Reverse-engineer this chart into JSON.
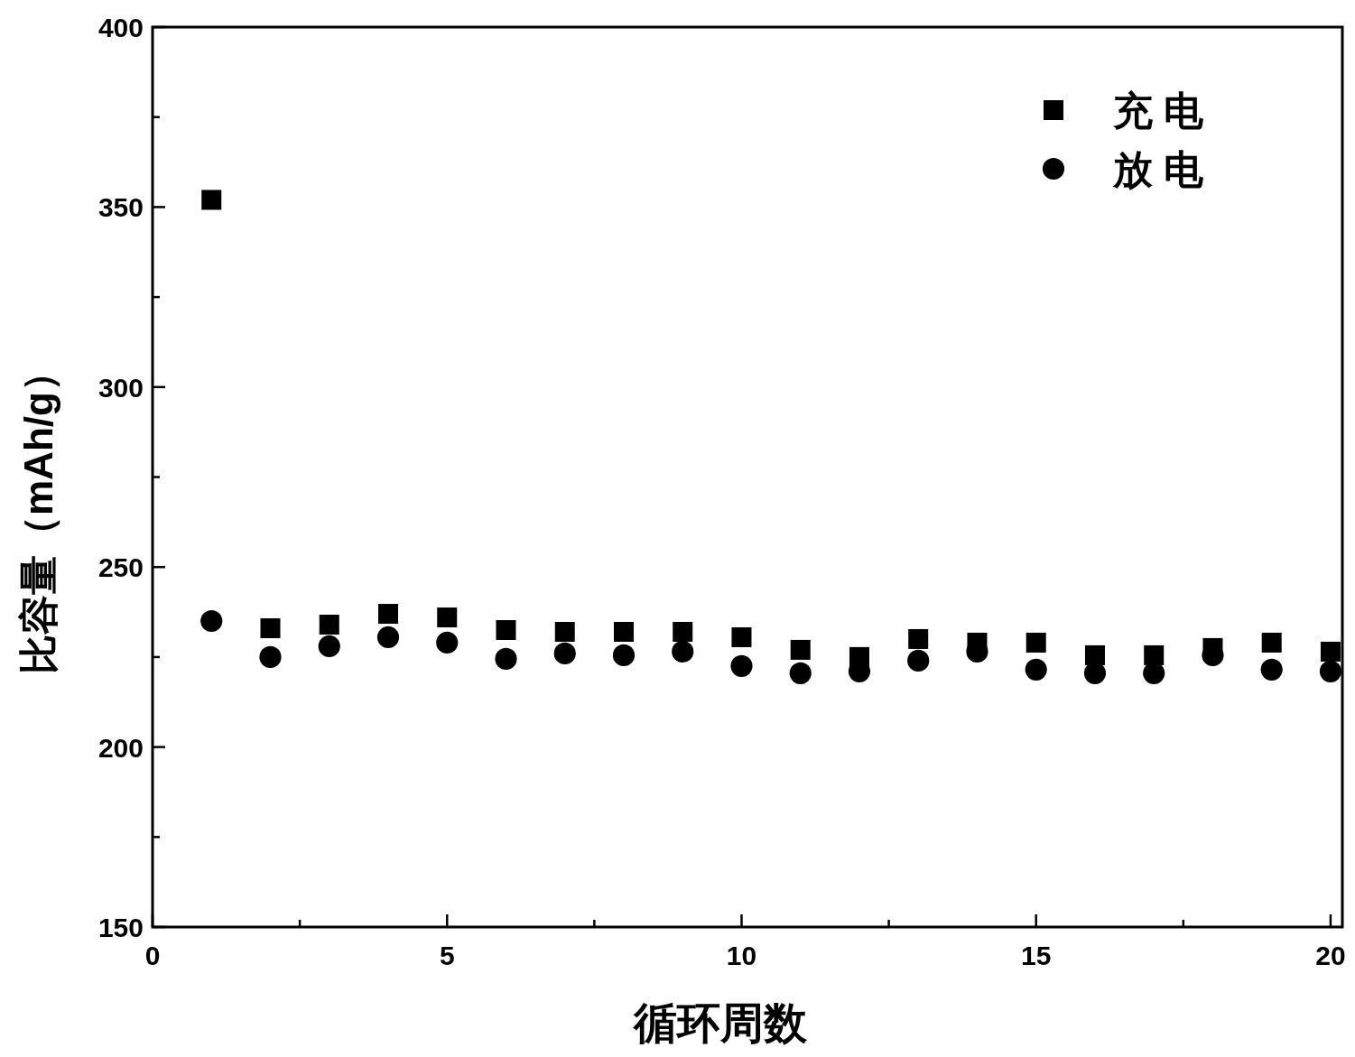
{
  "chart_data": {
    "type": "scatter",
    "xlabel": "循环周数",
    "ylabel": "比容量（mAh/g）",
    "x": [
      1,
      2,
      3,
      4,
      5,
      6,
      7,
      8,
      9,
      10,
      11,
      12,
      13,
      14,
      15,
      16,
      17,
      18,
      19,
      20
    ],
    "series": [
      {
        "name": "充 电",
        "color": "#000000",
        "marker": "square",
        "values": [
          352,
          233,
          234,
          237,
          236,
          232.5,
          232,
          232,
          232,
          230.5,
          227,
          225,
          230,
          229,
          229,
          225.5,
          225.5,
          227.5,
          229,
          226.5
        ]
      },
      {
        "name": "放 电",
        "color": "#000000",
        "marker": "circle",
        "values": [
          235,
          225,
          228,
          230.5,
          229,
          224.5,
          226,
          225.5,
          226.5,
          222.5,
          220.5,
          221,
          224,
          226.5,
          221.5,
          220.5,
          220.5,
          225.5,
          221.5,
          221
        ]
      }
    ],
    "xlim": [
      0,
      20.2
    ],
    "ylim": [
      150,
      400
    ],
    "xticks": [
      0,
      {
        "value": 2.5,
        "label": null
      },
      5,
      {
        "value": 7.5,
        "label": null
      },
      10,
      {
        "value": 12.5,
        "label": null
      },
      15,
      {
        "value": 17.5,
        "label": null
      },
      20
    ],
    "yticks": [
      150,
      {
        "value": 175,
        "label": null
      },
      200,
      {
        "value": 225,
        "label": null
      },
      250,
      {
        "value": 275,
        "label": null
      },
      300,
      {
        "value": 325,
        "label": null
      },
      350,
      {
        "value": 375,
        "label": null
      },
      400
    ],
    "legend": "top right",
    "grid": false
  }
}
